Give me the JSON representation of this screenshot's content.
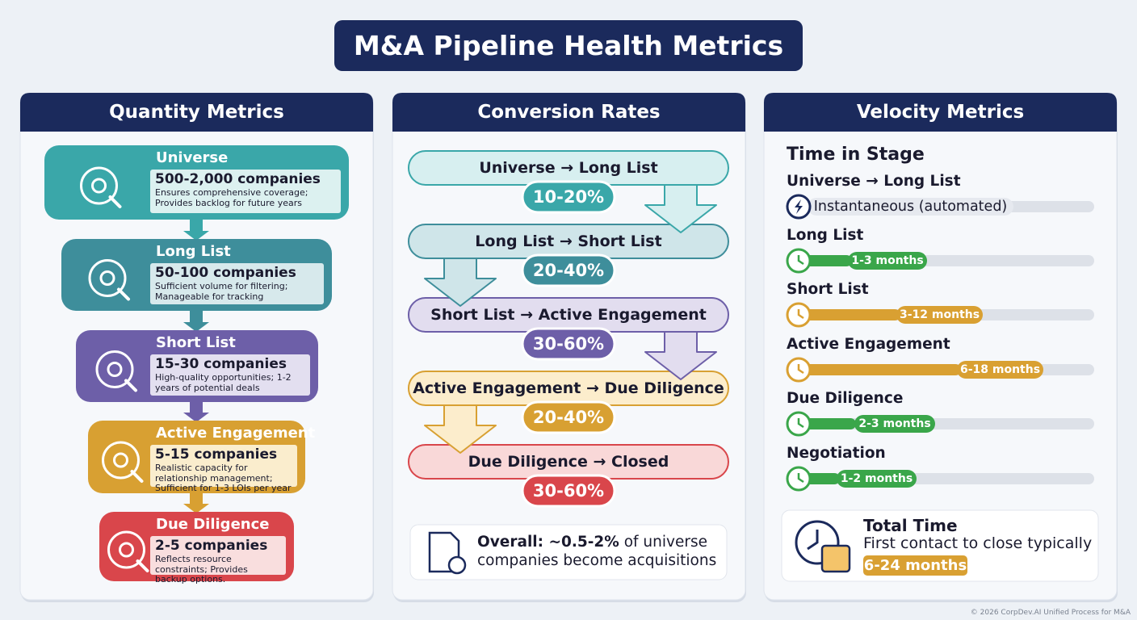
{
  "title": "M&A Pipeline Health Metrics",
  "quantity": {
    "heading": "Quantity Metrics",
    "stages": [
      {
        "name": "Universe",
        "count": "500-2,000 companies",
        "note": "Ensures comprehensive coverage; Provides backlog for future years"
      },
      {
        "name": "Long List",
        "count": "50-100 companies",
        "note": "Sufficient volume for filtering; Manageable for tracking"
      },
      {
        "name": "Short List",
        "count": "15-30 companies",
        "note": "High-quality opportunities; 1-2 years of potential deals"
      },
      {
        "name": "Active Engagement",
        "count": "5-15 companies",
        "note": "Realistic capacity for relationship management; Sufficient for 1-3 LOIs per year"
      },
      {
        "name": "Due Diligence",
        "count": "2-5 companies",
        "note": "Reflects resource constraints; Provides backup options."
      }
    ]
  },
  "conversion": {
    "heading": "Conversion Rates",
    "steps": [
      {
        "label": "Universe → Long List",
        "rate": "10-20%"
      },
      {
        "label": "Long List → Short List",
        "rate": "20-40%"
      },
      {
        "label": "Short List → Active Engagement",
        "rate": "30-60%"
      },
      {
        "label": "Active Engagement → Due Diligence",
        "rate": "20-40%"
      },
      {
        "label": "Due Diligence → Closed",
        "rate": "30-60%"
      }
    ],
    "overall": {
      "lead": "Overall: ~0.5-2%",
      "rest": "of universe companies become acquisitions"
    }
  },
  "velocity": {
    "heading": "Velocity Metrics",
    "subheading": "Time in Stage",
    "stages": [
      {
        "name": "Universe → Long List",
        "duration": "Instantaneous (automated)"
      },
      {
        "name": "Long List",
        "duration": "1-3 months"
      },
      {
        "name": "Short List",
        "duration": "3-12 months"
      },
      {
        "name": "Active Engagement",
        "duration": "6-18 months"
      },
      {
        "name": "Due Diligence",
        "duration": "2-3 months"
      },
      {
        "name": "Negotiation",
        "duration": "1-2 months"
      }
    ],
    "total": {
      "title": "Total Time",
      "text": "First contact to close typically",
      "range": "6-24 months"
    }
  },
  "footer": "© 2026 CorpDev.AI Unified Process for M&A"
}
